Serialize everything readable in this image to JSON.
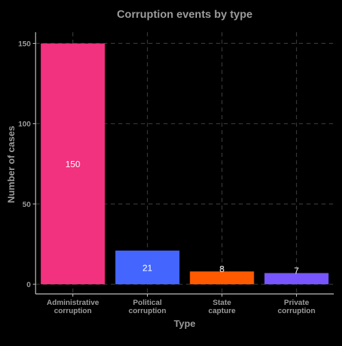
{
  "chart_data": {
    "type": "bar",
    "title": "Corruption events by type",
    "xlabel": "Type",
    "ylabel": "Number of cases",
    "categories": [
      [
        "Administrative",
        "corruption"
      ],
      [
        "Political",
        "corruption"
      ],
      [
        "State",
        "capture"
      ],
      [
        "Private",
        "corruption"
      ]
    ],
    "values": [
      150,
      21,
      8,
      7
    ],
    "data_labels": [
      "150",
      "21",
      "8",
      "7"
    ],
    "bar_colors": [
      "#f2317f",
      "#4466ff",
      "#ff5a00",
      "#7755ff"
    ],
    "yticks": [
      0,
      50,
      100,
      150
    ],
    "ytick_labels": [
      "0",
      "50",
      "100",
      "150"
    ],
    "ylim": [
      -6,
      157
    ],
    "grid": true,
    "legend": "none",
    "colors": {
      "background": "#000000",
      "text": "#9a9a9a",
      "axis": "#cccccc",
      "grid": "#3a3a3a",
      "data_label": "#ffffff"
    }
  }
}
